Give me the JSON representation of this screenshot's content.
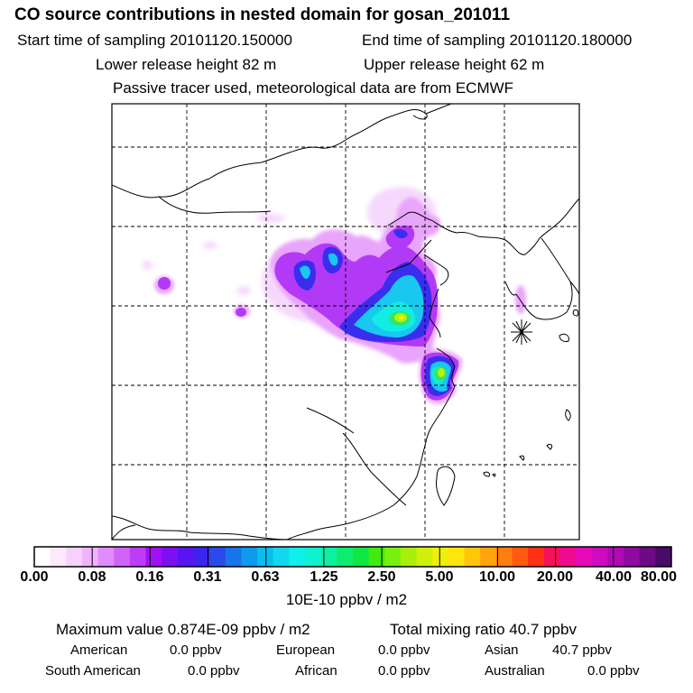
{
  "header": {
    "title": "CO  source contributions in nested domain for gosan_201011",
    "start_label": "Start time of sampling 20101120.150000",
    "end_label": "End time of sampling 20101120.180000",
    "lower_label": "Lower release height   82 m",
    "upper_label": "Upper release height   62 m",
    "tracer_label": "Passive tracer used, meteorological data are from ECMWF"
  },
  "colorbar": {
    "labels": [
      "0.00",
      "0.08",
      "0.16",
      "0.31",
      "0.63",
      "1.25",
      "2.50",
      "5.00",
      "10.00",
      "20.00",
      "40.00",
      "80.00"
    ],
    "colors": [
      "#ffffff",
      "#fde8fe",
      "#f8d0fd",
      "#f0b2fc",
      "#e28cfb",
      "#d064fa",
      "#bd3cf8",
      "#a30ff5",
      "#7d10f3",
      "#5a14f1",
      "#3d25ee",
      "#2a4bec",
      "#1874ec",
      "#0e9aed",
      "#0bbdef",
      "#12d8ef",
      "#0ff0ec",
      "#0ef2d0",
      "#0cf0a2",
      "#0ced70",
      "#0fe840",
      "#40ec10",
      "#78f00e",
      "#a8f00c",
      "#d0f00c",
      "#eef00c",
      "#ffe50c",
      "#ffc60c",
      "#ffa40c",
      "#ff7e0f",
      "#ff5a10",
      "#ff3014",
      "#f7105a",
      "#f00a90",
      "#e80ab8",
      "#d00ac0",
      "#b00ab4",
      "#900aa0",
      "#6e0a86",
      "#4a0a68"
    ],
    "unit_label": "10E-10 ppbv / m2"
  },
  "summary": {
    "max_label": "Maximum value  0.874E-09 ppbv / m2",
    "total_label": "Total mixing ratio       40.7 ppbv",
    "american_label": "American",
    "american_value": "0.0 ppbv",
    "european_label": "European",
    "european_value": "0.0 ppbv",
    "asian_label": "Asian",
    "asian_value": "40.7 ppbv",
    "south_american_label": "South American",
    "south_american_value": "0.0 ppbv",
    "african_label": "African",
    "african_value": "0.0 ppbv",
    "australian_label": "Australian",
    "australian_value": "0.0 ppbv"
  },
  "chart_data": {
    "type": "heatmap",
    "title": "CO  source contributions in nested domain for gosan_201011",
    "color_scale_labels": [
      "0.00",
      "0.08",
      "0.16",
      "0.31",
      "0.63",
      "1.25",
      "2.50",
      "5.00",
      "10.00",
      "20.00",
      "40.00",
      "80.00"
    ],
    "unit": "10E-10 ppbv / m2",
    "maximum_value": "0.874E-09 ppbv / m2",
    "total_mixing_ratio_ppbv": 40.7
  }
}
